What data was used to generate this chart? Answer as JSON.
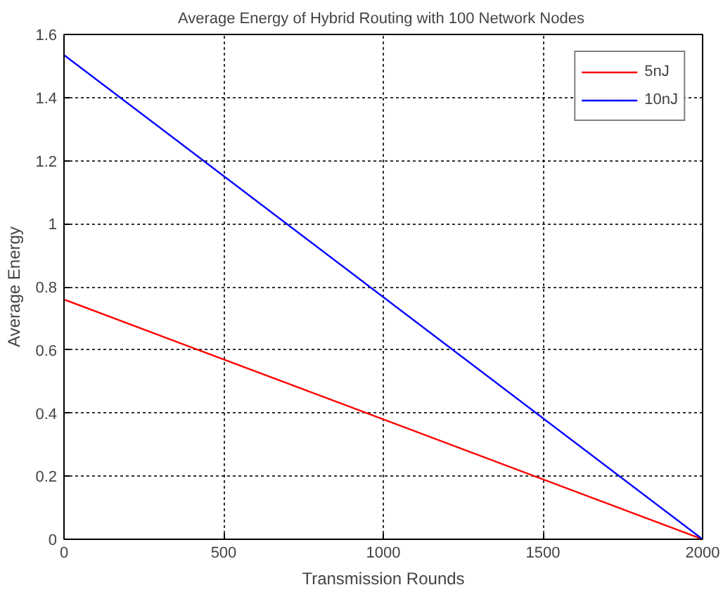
{
  "chart_data": {
    "type": "line",
    "title": "Average Energy of Hybrid Routing with  100 Network Nodes",
    "xlabel": "Transmission Rounds",
    "ylabel": "Average Energy",
    "series": [
      {
        "name": "5nJ",
        "color": "#ff0000",
        "values": [
          0.76,
          0
        ]
      },
      {
        "name": "10nJ",
        "color": "#0000ff",
        "values": [
          1.535,
          0
        ]
      }
    ],
    "x": [
      0,
      2000
    ],
    "xlim": [
      0,
      2000
    ],
    "xticks": [
      0,
      500,
      1000,
      1500,
      2000
    ],
    "ylim": [
      0,
      1.6
    ],
    "yticks": [
      0,
      0.2,
      0.4,
      0.6,
      0.8,
      {
        "value": 1.0,
        "label": "1"
      },
      1.2,
      1.4,
      1.6
    ],
    "grid": true,
    "legend": "top right",
    "line_style": "solid",
    "marker": "none"
  }
}
